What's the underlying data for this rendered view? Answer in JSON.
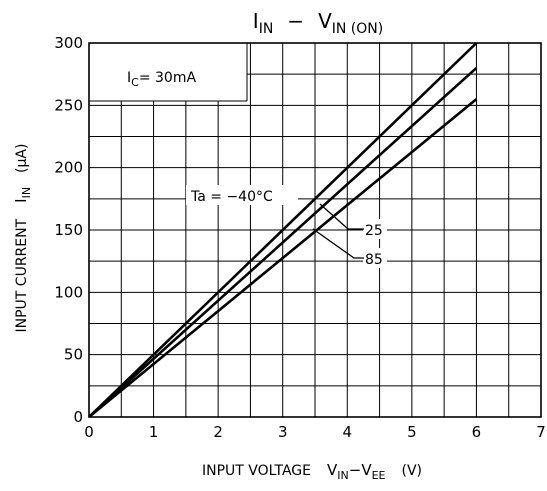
{
  "chart_data": {
    "type": "line",
    "title_main": "I",
    "title_main_sub": "IN",
    "title_sep": "−",
    "title_second": "V",
    "title_second_sub": "IN (ON)",
    "xlabel": "INPUT VOLTAGE",
    "xlabel_v": "V",
    "xlabel_v_sub": "IN",
    "xlabel_minus": "−",
    "xlabel_vee": "V",
    "xlabel_vee_sub": "EE",
    "xlabel_unit": "(V)",
    "ylabel": "INPUT CURRENT",
    "ylabel_i": "I",
    "ylabel_i_sub": "IN",
    "ylabel_unit": "(μA)",
    "xlim": [
      0,
      7
    ],
    "ylim": [
      0,
      300
    ],
    "x_ticks": [
      "0",
      "1",
      "2",
      "3",
      "4",
      "5",
      "6",
      "7"
    ],
    "y_ticks": [
      "0",
      "50",
      "100",
      "150",
      "200",
      "250",
      "300"
    ],
    "grid": true,
    "series": [
      {
        "name": "Ta = −40°C",
        "x": [
          0,
          6
        ],
        "y": [
          0,
          300
        ]
      },
      {
        "name": "25",
        "x": [
          0,
          6
        ],
        "y": [
          0,
          280
        ]
      },
      {
        "name": "85",
        "x": [
          0,
          6
        ],
        "y": [
          0,
          255
        ]
      }
    ],
    "condition_label_i": "I",
    "condition_label_sub": "C",
    "condition_label_value": "= 30mA"
  }
}
